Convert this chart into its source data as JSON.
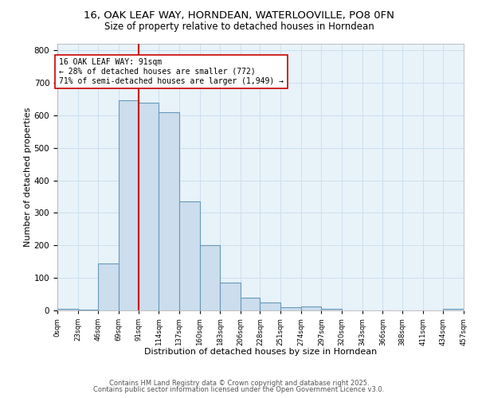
{
  "title_line1": "16, OAK LEAF WAY, HORNDEAN, WATERLOOVILLE, PO8 0FN",
  "title_line2": "Size of property relative to detached houses in Horndean",
  "xlabel": "Distribution of detached houses by size in Horndean",
  "ylabel": "Number of detached properties",
  "bar_edges": [
    0,
    23,
    46,
    69,
    91,
    114,
    137,
    160,
    183,
    206,
    228,
    251,
    274,
    297,
    320,
    343,
    366,
    388,
    411,
    434,
    457
  ],
  "bar_heights": [
    5,
    3,
    145,
    645,
    640,
    610,
    335,
    200,
    85,
    40,
    25,
    10,
    12,
    5,
    0,
    0,
    0,
    0,
    0,
    5
  ],
  "bar_facecolor": "#ccdded",
  "bar_edgecolor": "#6699bb",
  "bar_linewidth": 0.8,
  "vline_x": 91,
  "vline_color": "#cc0000",
  "vline_linewidth": 1.5,
  "annotation_text_line1": "16 OAK LEAF WAY: 91sqm",
  "annotation_text_line2": "← 28% of detached houses are smaller (772)",
  "annotation_text_line3": "71% of semi-detached houses are larger (1,949) →",
  "annotation_fontsize": 7.0,
  "annotation_box_edgecolor": "#cc0000",
  "annotation_box_facecolor": "#ffffff",
  "ylim": [
    0,
    820
  ],
  "yticks": [
    0,
    100,
    200,
    300,
    400,
    500,
    600,
    700,
    800
  ],
  "tick_labels": [
    "0sqm",
    "23sqm",
    "46sqm",
    "69sqm",
    "91sqm",
    "114sqm",
    "137sqm",
    "160sqm",
    "183sqm",
    "206sqm",
    "228sqm",
    "251sqm",
    "274sqm",
    "297sqm",
    "320sqm",
    "343sqm",
    "366sqm",
    "388sqm",
    "411sqm",
    "434sqm",
    "457sqm"
  ],
  "grid_color": "#cce0ee",
  "background_color": "#e8f2f9",
  "footer_line1": "Contains HM Land Registry data © Crown copyright and database right 2025.",
  "footer_line2": "Contains public sector information licensed under the Open Government Licence v3.0.",
  "footer_fontsize": 6.0,
  "title_fontsize1": 9.5,
  "title_fontsize2": 8.5,
  "xlabel_fontsize": 8,
  "ylabel_fontsize": 8
}
